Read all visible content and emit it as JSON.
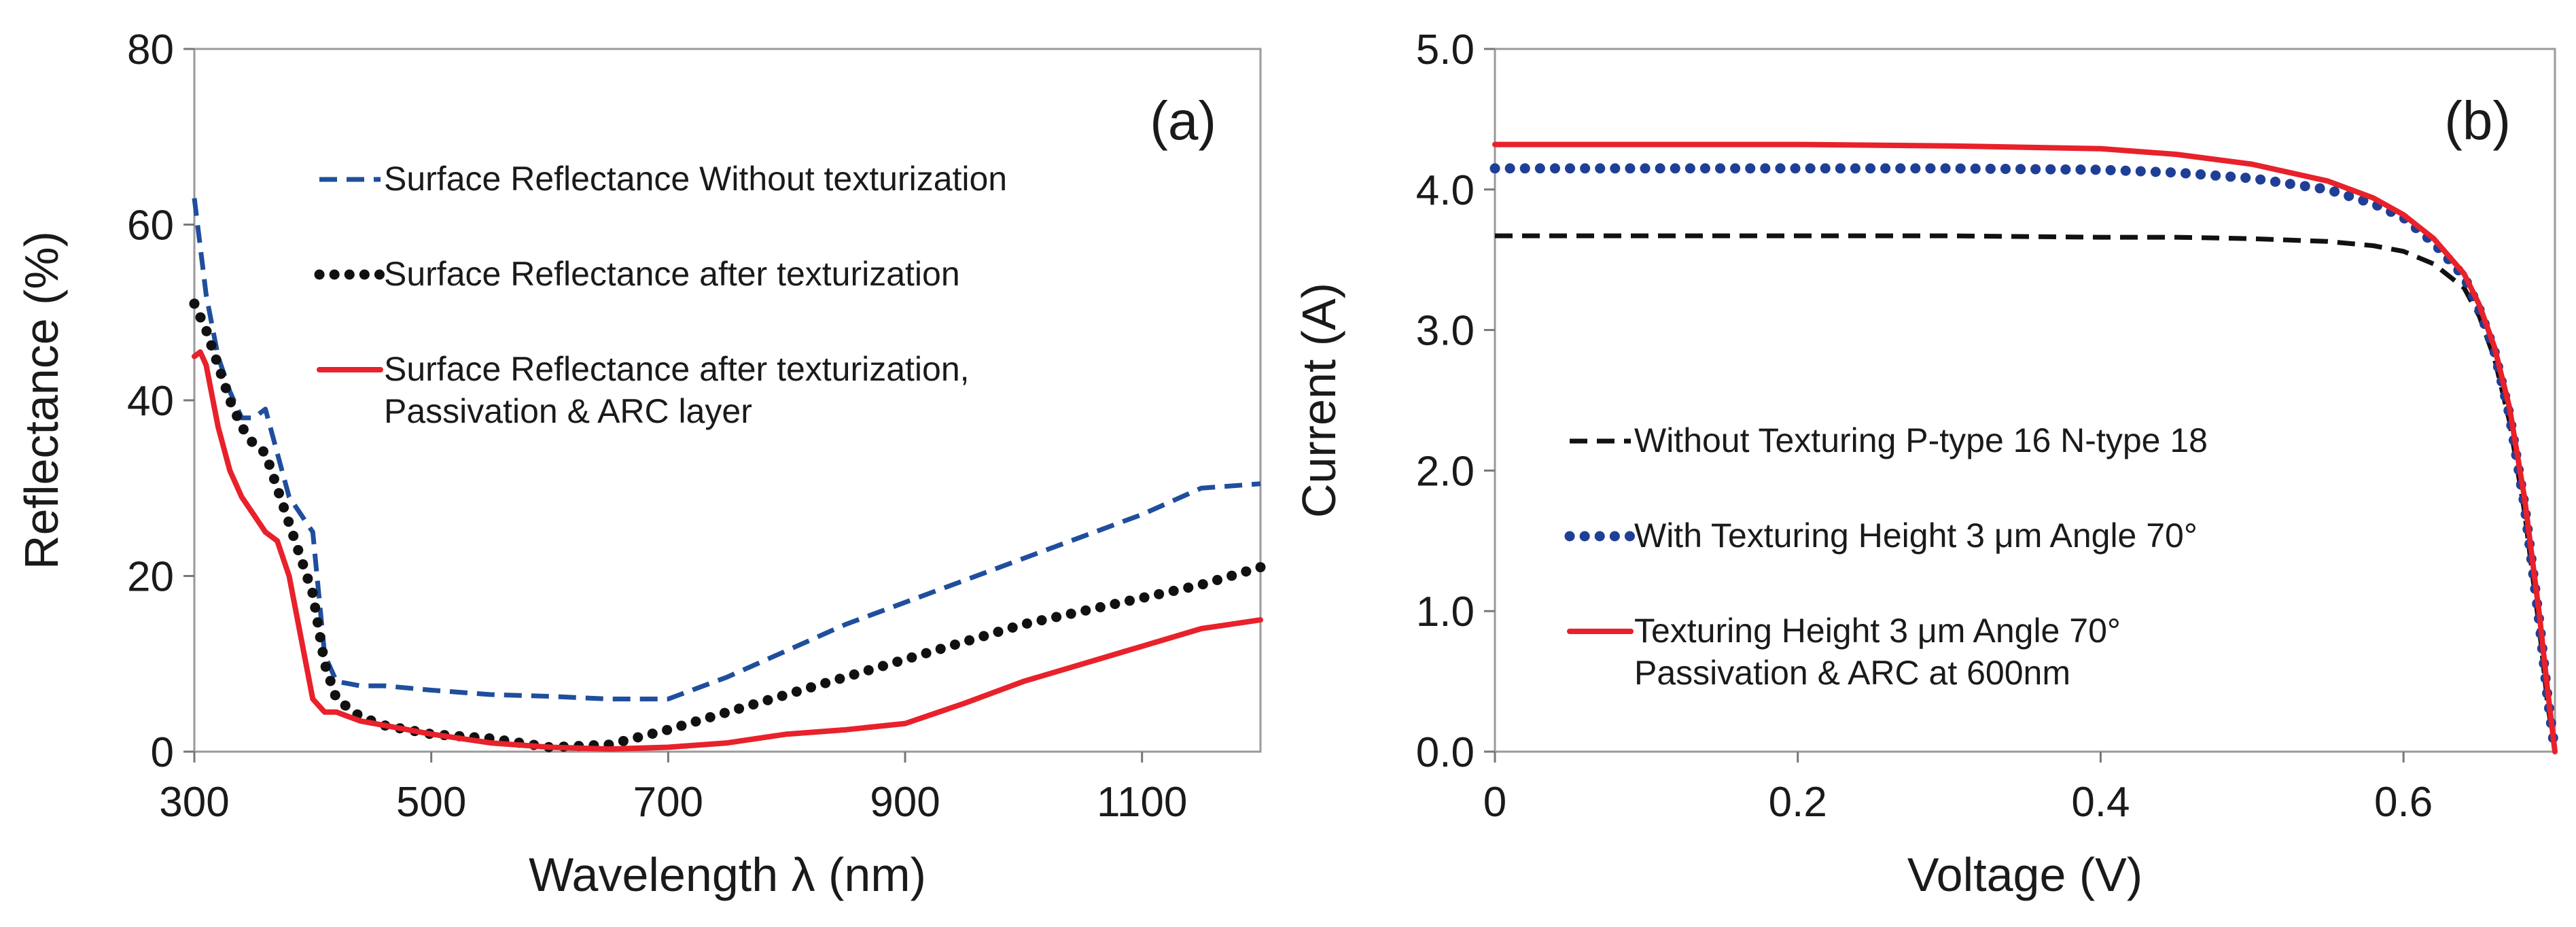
{
  "chart_data": [
    {
      "type": "line",
      "panel_label": "(a)",
      "xlabel": "Wavelength λ (nm)",
      "ylabel": "Reflectance (%)",
      "xlim": [
        300,
        1200
      ],
      "ylim": [
        0,
        80
      ],
      "xticks": [
        300,
        500,
        700,
        900,
        1100
      ],
      "xtick_labels": [
        "300",
        "500",
        "700",
        "900",
        "1100"
      ],
      "yticks": [
        0,
        20,
        40,
        60,
        80
      ],
      "ytick_labels": [
        "0",
        "20",
        "40",
        "60",
        "80"
      ],
      "grid": false,
      "legend_position": "top-right",
      "series": [
        {
          "name": "Surface Reflectance Without texturization",
          "legend_lines": [
            "Surface Reflectance Without texturization"
          ],
          "color": "#1f4e9c",
          "style": "dashed",
          "x": [
            300,
            310,
            320,
            330,
            340,
            350,
            360,
            370,
            380,
            390,
            400,
            410,
            420,
            440,
            460,
            500,
            550,
            600,
            650,
            700,
            750,
            800,
            850,
            900,
            950,
            1000,
            1050,
            1100,
            1150,
            1200
          ],
          "y": [
            63,
            52,
            45,
            41,
            38,
            38,
            39,
            34,
            29,
            27,
            25,
            11,
            8,
            7.5,
            7.5,
            7,
            6.5,
            6.3,
            6,
            6,
            8.5,
            11.5,
            14.5,
            17,
            19.5,
            22,
            24.5,
            27,
            30,
            30.5
          ]
        },
        {
          "name": "Surface Reflectance after texturization",
          "legend_lines": [
            "Surface Reflectance after texturization"
          ],
          "color": "#111111",
          "style": "dotted",
          "x": [
            300,
            310,
            320,
            330,
            340,
            350,
            360,
            370,
            380,
            390,
            400,
            410,
            420,
            440,
            460,
            500,
            550,
            600,
            650,
            700,
            750,
            800,
            850,
            900,
            950,
            1000,
            1050,
            1100,
            1150,
            1200
          ],
          "y": [
            51,
            48,
            44,
            40,
            37,
            35,
            34,
            30,
            26,
            22,
            18,
            10,
            6,
            4,
            3,
            2,
            1.5,
            0.5,
            0.8,
            2.5,
            4.5,
            6.5,
            8.5,
            10.5,
            12.5,
            14.5,
            16,
            17.5,
            19,
            21
          ]
        },
        {
          "name": "Surface Reflectance after texturization, Passivation & ARC layer",
          "legend_lines": [
            "Surface Reflectance after texturization,",
            "Passivation & ARC layer"
          ],
          "color": "#e8212a",
          "style": "solid",
          "x": [
            300,
            305,
            310,
            320,
            330,
            340,
            350,
            360,
            370,
            380,
            390,
            400,
            410,
            420,
            440,
            460,
            500,
            550,
            600,
            650,
            700,
            750,
            800,
            850,
            900,
            950,
            1000,
            1050,
            1100,
            1150,
            1200
          ],
          "y": [
            45,
            45.5,
            44,
            37,
            32,
            29,
            27,
            25,
            24,
            20,
            13,
            6,
            4.5,
            4.5,
            3.5,
            3,
            2,
            1,
            0.5,
            0.3,
            0.5,
            1,
            2,
            2.5,
            3.2,
            5.5,
            8,
            10,
            12,
            14,
            15
          ]
        }
      ]
    },
    {
      "type": "line",
      "panel_label": "(b)",
      "xlabel": "Voltage (V)",
      "ylabel": "Current (A)",
      "xlim": [
        0,
        0.7
      ],
      "ylim": [
        0,
        5
      ],
      "xticks": [
        0,
        0.2,
        0.4,
        0.6
      ],
      "xtick_labels": [
        "0",
        "0.2",
        "0.4",
        "0.6"
      ],
      "yticks": [
        0,
        1,
        2,
        3,
        4,
        5
      ],
      "ytick_labels": [
        "0.0",
        "1.0",
        "2.0",
        "3.0",
        "4.0",
        "5.0"
      ],
      "grid": false,
      "legend_position": "bottom-left",
      "series": [
        {
          "name": "Without Texturing P-type 16 N-type 18",
          "legend_lines": [
            "Without Texturing P-type 16 N-type 18"
          ],
          "color": "#111111",
          "style": "dashed",
          "x": [
            0,
            0.1,
            0.2,
            0.3,
            0.4,
            0.45,
            0.5,
            0.55,
            0.58,
            0.6,
            0.62,
            0.64,
            0.65,
            0.66,
            0.67,
            0.68,
            0.69,
            0.695,
            0.7
          ],
          "y": [
            3.67,
            3.67,
            3.67,
            3.67,
            3.66,
            3.66,
            3.65,
            3.63,
            3.6,
            3.56,
            3.47,
            3.3,
            3.1,
            2.8,
            2.35,
            1.7,
            0.85,
            0.35,
            0
          ]
        },
        {
          "name": "With Texturing Height 3 μm Angle 70°",
          "legend_lines": [
            "With Texturing Height 3 μm Angle 70°"
          ],
          "color": "#1f3f96",
          "style": "dotted",
          "x": [
            0,
            0.1,
            0.2,
            0.3,
            0.4,
            0.45,
            0.5,
            0.55,
            0.58,
            0.6,
            0.62,
            0.64,
            0.65,
            0.66,
            0.67,
            0.68,
            0.69,
            0.695,
            0.7
          ],
          "y": [
            4.15,
            4.15,
            4.15,
            4.15,
            4.14,
            4.12,
            4.08,
            4.0,
            3.9,
            3.8,
            3.62,
            3.38,
            3.15,
            2.85,
            2.4,
            1.75,
            0.9,
            0.4,
            0
          ]
        },
        {
          "name": "Texturing Height 3 μm Angle 70° Passivation & ARC at 600nm",
          "legend_lines": [
            "Texturing Height 3 μm Angle 70°",
            "Passivation & ARC at 600nm"
          ],
          "color": "#e8212a",
          "style": "solid",
          "x": [
            0,
            0.1,
            0.2,
            0.3,
            0.4,
            0.45,
            0.5,
            0.55,
            0.58,
            0.6,
            0.62,
            0.64,
            0.65,
            0.66,
            0.67,
            0.68,
            0.69,
            0.695,
            0.7
          ],
          "y": [
            4.32,
            4.32,
            4.32,
            4.31,
            4.29,
            4.25,
            4.18,
            4.06,
            3.94,
            3.82,
            3.65,
            3.4,
            3.18,
            2.88,
            2.45,
            1.8,
            0.95,
            0.45,
            0
          ]
        }
      ]
    }
  ]
}
